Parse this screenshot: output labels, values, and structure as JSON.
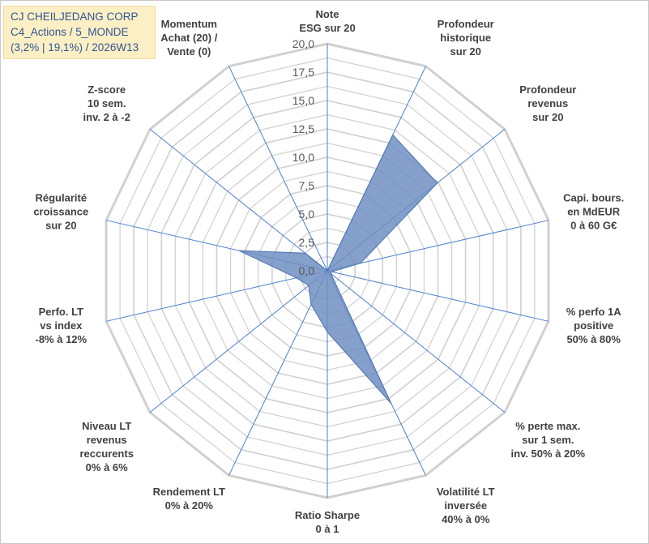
{
  "header": {
    "line1": "CJ CHEILJEDANG CORP",
    "line2": "C4_Actions / 5_MONDE",
    "line3": "(3,2% | 19,1%) / 2026W13"
  },
  "chart_data": {
    "type": "radar",
    "range": [
      0,
      20
    ],
    "ticks": [
      "0,0",
      "2,5",
      "5,0",
      "7,5",
      "10,0",
      "12,5",
      "15,0",
      "17,5",
      "20,0"
    ],
    "tick_values": [
      0,
      2.5,
      5,
      7.5,
      10,
      12.5,
      15,
      17.5,
      20
    ],
    "grid_step": 1.25,
    "axes": [
      {
        "lines": [
          "Note",
          "ESG sur 20"
        ]
      },
      {
        "lines": [
          "Profondeur",
          "historique",
          "sur 20"
        ]
      },
      {
        "lines": [
          "Profondeur",
          "revenus",
          "sur 20"
        ]
      },
      {
        "lines": [
          "Capi. bours.",
          "en MdEUR",
          "0 à 60 G€"
        ]
      },
      {
        "lines": [
          "% perfo 1A",
          "positive",
          "50% à 80%"
        ]
      },
      {
        "lines": [
          "% perte max.",
          "sur 1 sem.",
          "inv. 50% à 20%"
        ]
      },
      {
        "lines": [
          "Volatilité LT",
          "inversée",
          "40% à 0%"
        ]
      },
      {
        "lines": [
          "Ratio Sharpe",
          "0 à 1"
        ]
      },
      {
        "lines": [
          "Rendement LT",
          "0% à 20%"
        ]
      },
      {
        "lines": [
          "Niveau LT",
          "revenus",
          "reccurents",
          "0% à 6%"
        ]
      },
      {
        "lines": [
          "Perfo. LT",
          "vs index",
          "-8% à 12%"
        ]
      },
      {
        "lines": [
          "Régularité",
          "croissance",
          "sur 20"
        ]
      },
      {
        "lines": [
          "Z-score",
          "10 sem.",
          "inv. 2 à -2"
        ]
      },
      {
        "lines": [
          "Momentum",
          "Achat (20) /",
          "Vente (0)"
        ]
      }
    ],
    "series": [
      {
        "values": [
          0,
          13.3,
          12.4,
          3.0,
          0.4,
          0.4,
          13.0,
          5.4,
          3.3,
          2.1,
          2.8,
          8.0,
          2.5,
          0
        ]
      }
    ],
    "colors": {
      "fill": "#6e8fc2",
      "stroke": "#4a72b0",
      "grid": "#d0d0d0",
      "spoke": "#4a7fd0"
    },
    "grid": true,
    "legend": "none"
  }
}
